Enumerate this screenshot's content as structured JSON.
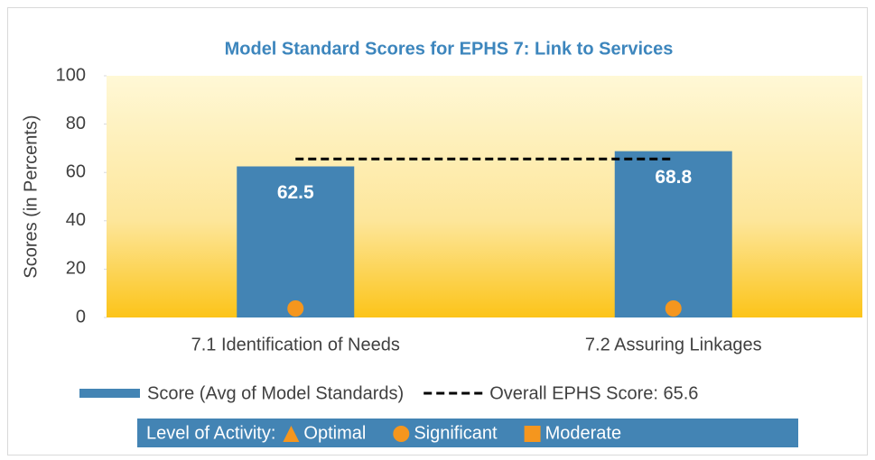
{
  "chart_data": {
    "type": "bar",
    "title": "Model Standard Scores for EPHS 7: Link to Services",
    "y_label": "Scores (in Percents)",
    "categories": [
      "7.1 Identification of Needs",
      "7.2 Assuring Linkages"
    ],
    "series": [
      {
        "name": "Score (Avg of Model Standards)",
        "type": "bar",
        "color": "#4384b4",
        "values": [
          62.5,
          68.8
        ]
      },
      {
        "name": "Overall EPHS Score: 65.6",
        "type": "line",
        "color": "#000000",
        "dash": true,
        "values": [
          65.6,
          65.6
        ]
      }
    ],
    "levels": [
      "Significant",
      "Significant"
    ],
    "level_color": "#f5961e",
    "activity_legend": {
      "title": "Level of Activity:",
      "items": [
        {
          "label": "Optimal",
          "shape": "triangle"
        },
        {
          "label": "Significant",
          "shape": "circle"
        },
        {
          "label": "Moderate",
          "shape": "square"
        }
      ]
    },
    "ylim": [
      0,
      100
    ],
    "yticks": [
      0,
      20,
      40,
      60,
      80,
      100
    ]
  }
}
